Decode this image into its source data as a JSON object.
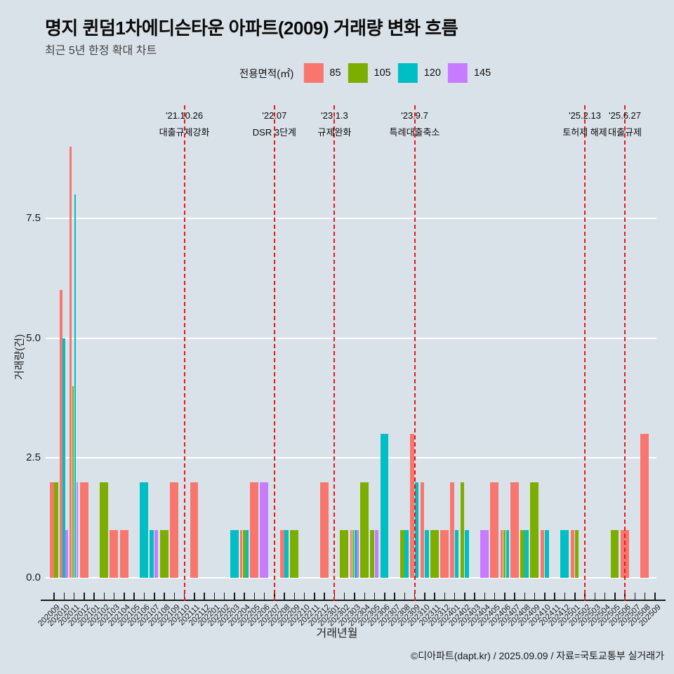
{
  "title": "명지 퀸덤1차에디슨타운 아파트(2009) 거래량 변화 흐름",
  "subtitle": "최근 5년 한정 확대 차트",
  "legend": {
    "label": "전용면적(㎡)",
    "items": [
      {
        "label": "85",
        "color": "#f8766d"
      },
      {
        "label": "105",
        "color": "#7cae00"
      },
      {
        "label": "120",
        "color": "#00bfc4"
      },
      {
        "label": "145",
        "color": "#c77cff"
      }
    ]
  },
  "y_axis": {
    "title": "거래량(건)"
  },
  "x_axis": {
    "title": "거래년월"
  },
  "footer": "©디아파트(dapt.kr) / 2025.09.09 / 자료=국토교통부 실거래가",
  "chart_data": {
    "type": "bar",
    "title": "명지 퀸덤1차에디슨타운 아파트(2009) 거래량 변화 흐름",
    "subtitle": "최근 5년 한정 확대 차트",
    "xlabel": "거래년월",
    "ylabel": "거래량(건)",
    "ylim": [
      0,
      9.5
    ],
    "yticks": [
      0,
      2.5,
      5,
      7.5
    ],
    "ytick_labels": [
      "0.0",
      "2.5",
      "5.0",
      "7.5"
    ],
    "grid": true,
    "legend_position": "top",
    "background": "#d9e2e9",
    "gridline_color": "#ffffff",
    "vline_color": "#f01414",
    "categories": [
      "202009",
      "202010",
      "202011",
      "202012",
      "202101",
      "202102",
      "202103",
      "202104",
      "202105",
      "202106",
      "202107",
      "202108",
      "202109",
      "202110",
      "202111",
      "202112",
      "202201",
      "202202",
      "202203",
      "202204",
      "202205",
      "202206",
      "202207",
      "202208",
      "202209",
      "202210",
      "202211",
      "202212",
      "202301",
      "202302",
      "202303",
      "202304",
      "202305",
      "202306",
      "202307",
      "202308",
      "202309",
      "202310",
      "202311",
      "202312",
      "202401",
      "202402",
      "202403",
      "202404",
      "202405",
      "202406",
      "202407",
      "202408",
      "202409",
      "202410",
      "202411",
      "202412",
      "202501",
      "202502",
      "202503",
      "202504",
      "202505",
      "202506",
      "202507",
      "202508",
      "202509"
    ],
    "series": [
      {
        "name": "85",
        "color": "#f8766d",
        "points": {
          "202009": 2,
          "202010": 6,
          "202011": 9,
          "202012": 2,
          "202103": 1,
          "202104": 1,
          "202109": 2,
          "202111": 2,
          "202204": 1,
          "202205": 2,
          "202208": 1,
          "202212": 2,
          "202303": 1,
          "202309": 3,
          "202310": 2,
          "202312": 1,
          "202401": 2,
          "202405": 2,
          "202406": 1,
          "202407": 2,
          "202410": 1,
          "202501": 1,
          "202506": 1,
          "202508": 3
        }
      },
      {
        "name": "105",
        "color": "#7cae00",
        "points": {
          "202009": 2,
          "202011": 4,
          "202102": 2,
          "202108": 1,
          "202204": 1,
          "202209": 1,
          "202302": 1,
          "202303": 1,
          "202304": 2,
          "202305": 1,
          "202308": 1,
          "202311": 1,
          "202402": 2,
          "202406": 1,
          "202408": 1,
          "202409": 2,
          "202501": 1,
          "202505": 1
        }
      },
      {
        "name": "120",
        "color": "#00bfc4",
        "points": {
          "202010": 5,
          "202011": 8,
          "202106": 2,
          "202107": 1,
          "202203": 1,
          "202204": 1,
          "202208": 1,
          "202303": 1,
          "202306": 3,
          "202308": 1,
          "202309": 2,
          "202310": 1,
          "202401": 1,
          "202402": 1,
          "202406": 1,
          "202408": 1,
          "202410": 1,
          "202412": 1
        }
      },
      {
        "name": "145",
        "color": "#c77cff",
        "points": {
          "202010": 1,
          "202011": 2,
          "202107": 1,
          "202206": 2,
          "202303": 1,
          "202305": 1,
          "202404": 1
        }
      }
    ],
    "vlines": [
      {
        "month": "202110",
        "date": "'21.10.26",
        "label": "대출규제강화"
      },
      {
        "month": "202207",
        "date": "'22.07",
        "label": "DSR 3단계"
      },
      {
        "month": "202301",
        "date": "'23.1.3",
        "label": "규제완화"
      },
      {
        "month": "202309",
        "date": "'23.9.7",
        "label": "특례대출축소"
      },
      {
        "month": "202502",
        "date": "'25.2.13",
        "label": "토허제 해제"
      },
      {
        "month": "202506",
        "date": "'25.6.27",
        "label": "대출규제"
      }
    ]
  }
}
